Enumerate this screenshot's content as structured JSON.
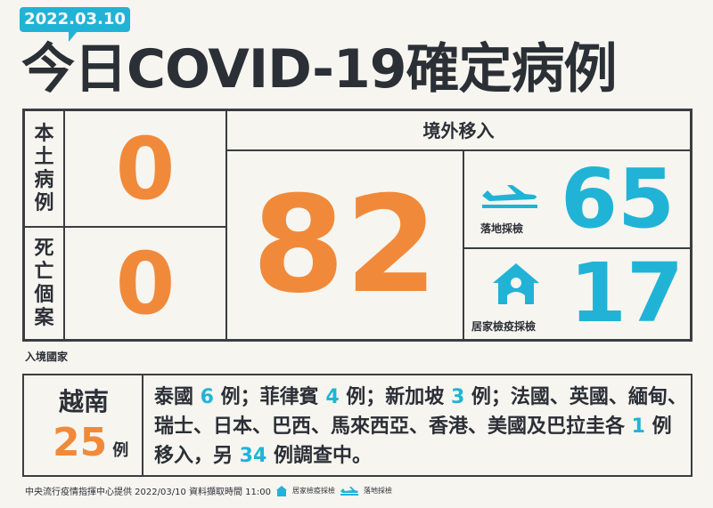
{
  "date_badge": "2022.03.10",
  "title": "今日COVID-19確定病例",
  "local": {
    "label": "本土病例",
    "value": "0"
  },
  "deaths": {
    "label": "死亡個案",
    "value": "0"
  },
  "imported": {
    "header": "境外移入",
    "total": "82",
    "airport": {
      "label": "落地採檢",
      "value": "65",
      "icon": "airplane-icon"
    },
    "home": {
      "label": "居家檢疫採檢",
      "value": "17",
      "icon": "house-icon"
    }
  },
  "countries": {
    "section_label": "入境國家",
    "top": {
      "name": "越南",
      "value": "25",
      "unit": "例"
    },
    "detail": [
      {
        "t": "泰國 "
      },
      {
        "n": "6"
      },
      {
        "t": " 例；菲律賓 "
      },
      {
        "n": "4"
      },
      {
        "t": " 例；新加坡 "
      },
      {
        "n": "3"
      },
      {
        "t": " 例；法國、英國、緬甸、瑞士、日本、巴西、馬來西亞、香港、美國及巴拉圭各 "
      },
      {
        "n": "1"
      },
      {
        "t": " 例移入，另 "
      },
      {
        "n": "34"
      },
      {
        "t": " 例調查中。"
      }
    ]
  },
  "footer": {
    "source": "中央流行疫情指揮中心提供 2022/03/10 資料擷取時間 11:00",
    "legend_home": "居家檢疫採檢",
    "legend_air": "落地採檢"
  },
  "colors": {
    "orange": "#f08a3a",
    "cyan": "#21b3d6",
    "dark": "#2b2f36",
    "background": "#f7f5f0"
  }
}
